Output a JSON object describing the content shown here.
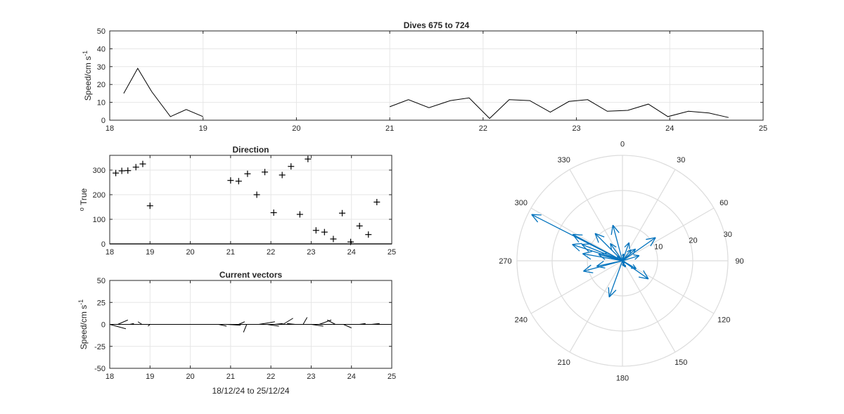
{
  "figure": {
    "title": "Dives 675 to 724",
    "line_color": "#000000",
    "vector_color": "#0072BD",
    "grid_color": "#e6e6e6"
  },
  "chart_data": [
    {
      "id": "speed",
      "type": "line",
      "title": "Dives 675 to 724",
      "xlabel": "",
      "ylabel": "Speed/cm s⁻¹",
      "xlim": [
        18,
        25
      ],
      "ylim": [
        0,
        50
      ],
      "xticks": [
        18,
        19,
        20,
        21,
        22,
        23,
        24,
        25
      ],
      "yticks": [
        0,
        10,
        20,
        30,
        40,
        50
      ],
      "grid": true,
      "segments": [
        {
          "x": [
            18.15,
            18.3,
            18.45,
            18.65,
            18.82,
            19.0
          ],
          "y": [
            15,
            29,
            16,
            2,
            6,
            2
          ]
        },
        {
          "x": [
            21.0,
            21.2,
            21.42,
            21.65,
            21.85,
            22.07,
            22.28,
            22.5,
            22.72,
            22.92,
            23.12,
            23.33,
            23.55,
            23.77,
            23.98,
            24.2,
            24.42,
            24.63
          ],
          "y": [
            7.5,
            11.5,
            7,
            11,
            12.5,
            1,
            11.5,
            11,
            4.5,
            10.5,
            11.5,
            5,
            5.5,
            9,
            2,
            5,
            4,
            1.5
          ]
        }
      ]
    },
    {
      "id": "direction",
      "type": "scatter",
      "title": "Direction",
      "xlabel": "",
      "ylabel": "° True",
      "marker": "+",
      "xlim": [
        18,
        25
      ],
      "ylim": [
        0,
        360
      ],
      "xticks": [
        18,
        19,
        20,
        21,
        22,
        23,
        24,
        25
      ],
      "yticks": [
        0,
        100,
        200,
        300
      ],
      "grid": true,
      "x": [
        18.15,
        18.3,
        18.45,
        18.65,
        18.82,
        19.0,
        21.0,
        21.2,
        21.42,
        21.65,
        21.85,
        22.07,
        22.28,
        22.5,
        22.72,
        22.92,
        23.12,
        23.33,
        23.55,
        23.77,
        23.98,
        24.2,
        24.42,
        24.63
      ],
      "y": [
        288,
        297,
        298,
        312,
        325,
        155,
        258,
        255,
        285,
        200,
        292,
        127,
        280,
        315,
        120,
        345,
        55,
        48,
        20,
        125,
        8,
        73,
        38,
        170
      ]
    },
    {
      "id": "vectors",
      "type": "quiver",
      "title": "Current vectors",
      "xlabel": "18/12/24 to 25/12/24",
      "ylabel": "Speed/cm s⁻¹",
      "xlim": [
        18,
        25
      ],
      "ylim": [
        -50,
        50
      ],
      "xticks": [
        18,
        19,
        20,
        21,
        22,
        23,
        24,
        25
      ],
      "yticks": [
        -50,
        -25,
        0,
        25,
        50
      ],
      "grid": true,
      "x": [
        18.0,
        18.2,
        18.5,
        18.8,
        19.0,
        20.7,
        20.9,
        21.2,
        21.4,
        21.7,
        21.9,
        22.1,
        22.3,
        22.6,
        22.8,
        23.0,
        23.2,
        23.6,
        23.8,
        24.2,
        24.5
      ],
      "u": [
        0.4,
        0.25,
        0.1,
        -0.1,
        -0.05,
        0.2,
        0.35,
        0.15,
        -0.08,
        0.4,
        0.3,
        0.2,
        0.25,
        -0.2,
        0.1,
        0.3,
        0.3,
        -0.2,
        0.2,
        0.15,
        0.2
      ],
      "v": [
        -5,
        5,
        1,
        3,
        -2,
        -2,
        -1,
        3,
        -9,
        3,
        -2,
        1,
        7,
        1,
        8,
        -2,
        5,
        5,
        -4,
        1,
        1
      ]
    },
    {
      "id": "compass",
      "type": "polar_compass",
      "rlim": [
        0,
        30
      ],
      "rticks": [
        10,
        20,
        30
      ],
      "theta_labels": [
        "0",
        "30",
        "60",
        "90",
        "120",
        "150",
        "180",
        "210",
        "240",
        "270",
        "300",
        "330"
      ],
      "theta_direction": "clockwise",
      "theta_zero": "top",
      "arrows": [
        {
          "dir": 288,
          "speed": 15
        },
        {
          "dir": 297,
          "speed": 29
        },
        {
          "dir": 298,
          "speed": 16
        },
        {
          "dir": 312,
          "speed": 2
        },
        {
          "dir": 325,
          "speed": 6
        },
        {
          "dir": 155,
          "speed": 2
        },
        {
          "dir": 258,
          "speed": 7.5
        },
        {
          "dir": 255,
          "speed": 11.5
        },
        {
          "dir": 285,
          "speed": 7
        },
        {
          "dir": 200,
          "speed": 11
        },
        {
          "dir": 292,
          "speed": 12.5
        },
        {
          "dir": 127,
          "speed": 1
        },
        {
          "dir": 280,
          "speed": 11.5
        },
        {
          "dir": 315,
          "speed": 11
        },
        {
          "dir": 120,
          "speed": 4.5
        },
        {
          "dir": 345,
          "speed": 10.5
        },
        {
          "dir": 55,
          "speed": 11.5
        },
        {
          "dir": 48,
          "speed": 5
        },
        {
          "dir": 20,
          "speed": 5.5
        },
        {
          "dir": 125,
          "speed": 9
        },
        {
          "dir": 8,
          "speed": 2
        },
        {
          "dir": 73,
          "speed": 5
        },
        {
          "dir": 38,
          "speed": 4
        },
        {
          "dir": 170,
          "speed": 1.5
        }
      ]
    }
  ]
}
